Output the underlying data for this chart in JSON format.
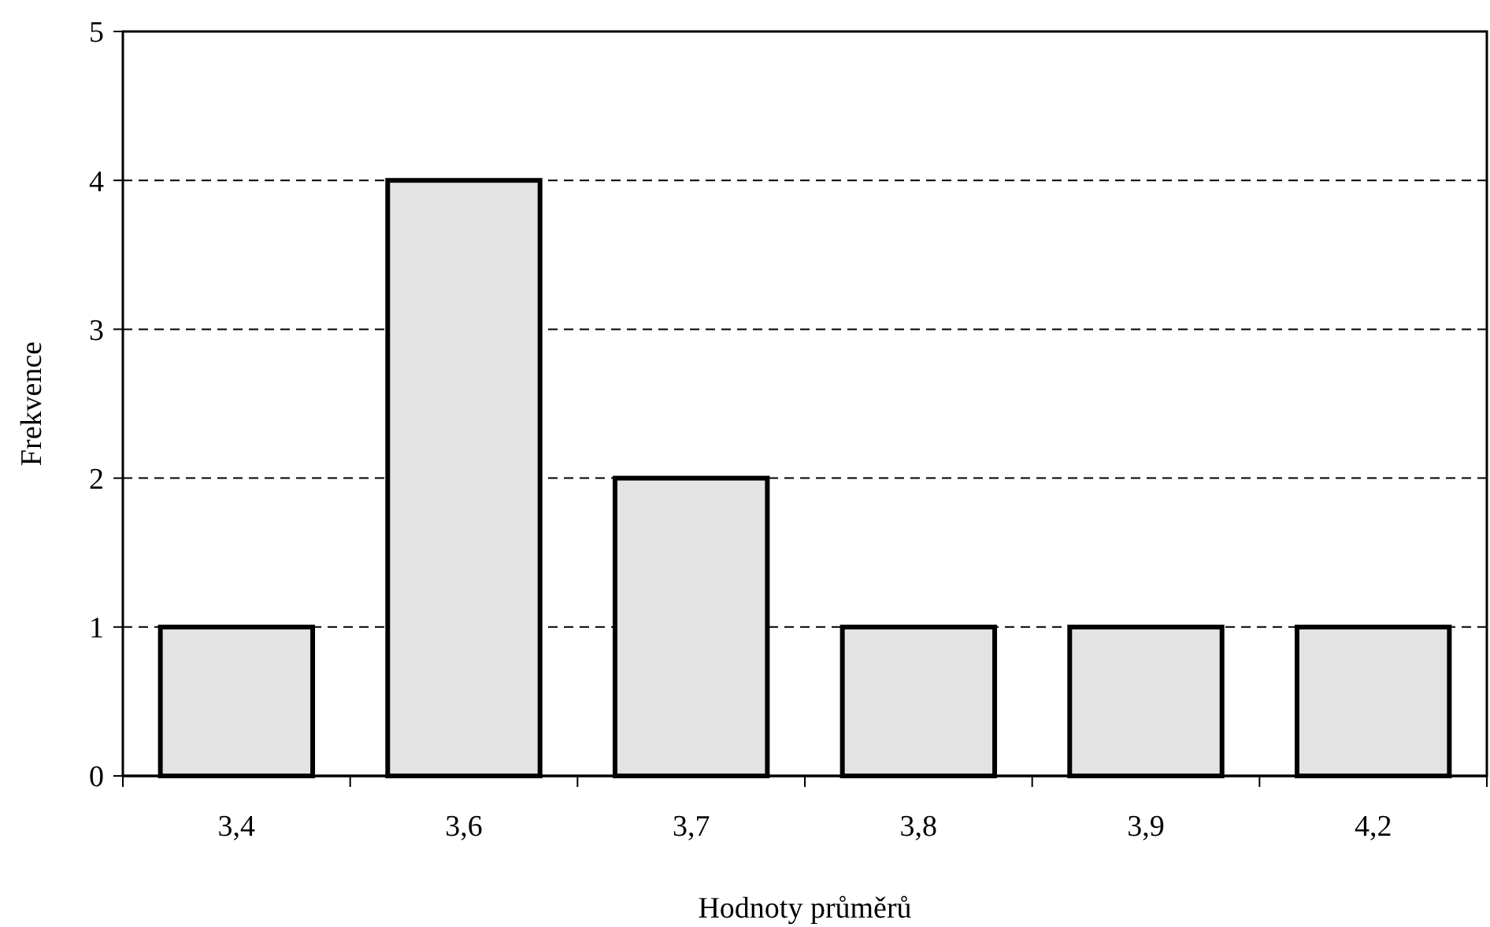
{
  "chart_data": {
    "type": "bar",
    "xlabel": "Hodnoty průměrů",
    "ylabel": "Frekvence",
    "categories": [
      "3,4",
      "3,6",
      "3,7",
      "3,8",
      "3,9",
      "4,2"
    ],
    "values": [
      1,
      4,
      2,
      1,
      1,
      1
    ],
    "color": "#e3e3e3",
    "ylim": [
      0,
      5
    ],
    "yticks": [
      0,
      1,
      2,
      3,
      4,
      5
    ],
    "grid": "y"
  }
}
